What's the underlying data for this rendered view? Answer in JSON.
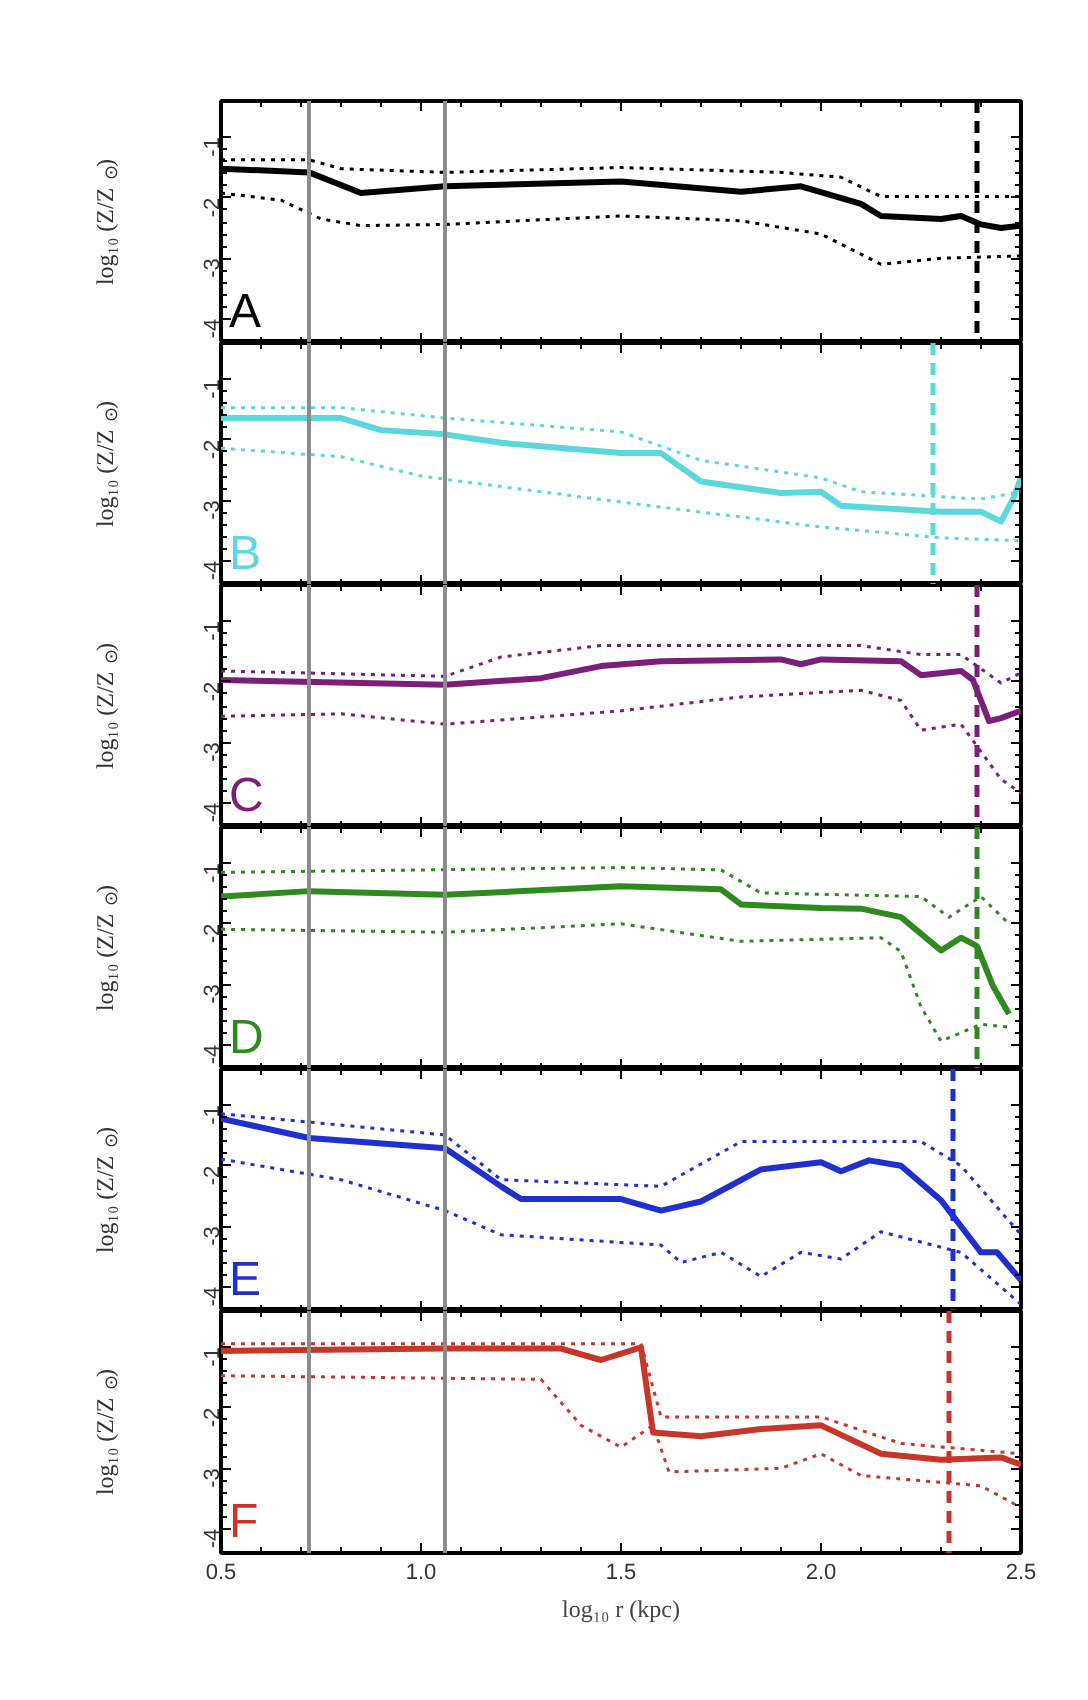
{
  "chart_data": [
    {
      "type": "line",
      "ylabel": "log₁₀ (Z/Z$_{⊙}$)",
      "annotations": [
        "A"
      ],
      "xlim": [
        0.5,
        2.5
      ],
      "ylim": [
        -4.4,
        -0.4
      ],
      "yticks": [
        -1,
        -2,
        -3,
        -4
      ],
      "xticks": [
        {
          "value": 0.5,
          "label": null
        },
        {
          "value": 1.0,
          "label": null
        },
        {
          "value": 1.5,
          "label": null
        },
        {
          "value": 2.0,
          "label": null
        },
        {
          "value": 2.5,
          "label": null
        }
      ],
      "tick_labels": "y",
      "ref_lines": [
        {
          "axis": "x",
          "value": 0.72,
          "color": "#8c8c8c",
          "line_style": "solid"
        },
        {
          "axis": "x",
          "value": 1.06,
          "color": "#8c8c8c",
          "line_style": "solid"
        },
        {
          "axis": "x",
          "value": 2.39,
          "color": "#000000",
          "line_style": "dashed"
        }
      ],
      "series": [
        {
          "color": "#000000",
          "line_style": "solid",
          "x": [
            0.5,
            0.72,
            0.85,
            1.06,
            1.5,
            1.8,
            1.95,
            2.1,
            2.15,
            2.3,
            2.35,
            2.4,
            2.45,
            2.5
          ],
          "values": [
            -1.52,
            -1.58,
            -1.92,
            -1.81,
            -1.73,
            -1.9,
            -1.81,
            -2.1,
            -2.3,
            -2.35,
            -2.3,
            -2.44,
            -2.5,
            -2.46
          ]
        },
        {
          "color": "#000000",
          "line_style": "dotted",
          "x": [
            0.5,
            0.72,
            0.8,
            1.06,
            1.5,
            1.9,
            2.05,
            2.15,
            2.4,
            2.5
          ],
          "values": [
            -1.37,
            -1.37,
            -1.52,
            -1.58,
            -1.5,
            -1.58,
            -1.66,
            -1.98,
            -1.98,
            -1.98
          ]
        },
        {
          "color": "#000000",
          "line_style": "dotted",
          "x": [
            0.5,
            0.65,
            0.75,
            0.85,
            1.06,
            1.5,
            1.8,
            2.0,
            2.15,
            2.3,
            2.5
          ],
          "values": [
            -1.92,
            -2.04,
            -2.35,
            -2.46,
            -2.44,
            -2.3,
            -2.38,
            -2.6,
            -3.1,
            -3.0,
            -2.96
          ]
        }
      ]
    },
    {
      "type": "line",
      "ylabel": "log₁₀ (Z/Z$_{⊙}$)",
      "annotations": [
        "B"
      ],
      "xlim": [
        0.5,
        2.5
      ],
      "ylim": [
        -4.4,
        -0.4
      ],
      "yticks": [
        -1,
        -2,
        -3,
        -4
      ],
      "xticks": [
        {
          "value": 0.5,
          "label": null
        },
        {
          "value": 1.0,
          "label": null
        },
        {
          "value": 1.5,
          "label": null
        },
        {
          "value": 2.0,
          "label": null
        },
        {
          "value": 2.5,
          "label": null
        }
      ],
      "tick_labels": "y",
      "ref_lines": [
        {
          "axis": "x",
          "value": 0.72,
          "color": "#8c8c8c",
          "line_style": "solid"
        },
        {
          "axis": "x",
          "value": 1.06,
          "color": "#8c8c8c",
          "line_style": "solid"
        },
        {
          "axis": "x",
          "value": 2.28,
          "color": "#5ad8dc",
          "line_style": "dashed"
        }
      ],
      "series": [
        {
          "color": "#5ad8dc",
          "line_style": "solid",
          "x": [
            0.5,
            0.8,
            0.9,
            1.06,
            1.2,
            1.5,
            1.6,
            1.7,
            1.9,
            2.0,
            2.05,
            2.3,
            2.4,
            2.45,
            2.48,
            2.5
          ],
          "values": [
            -1.64,
            -1.64,
            -1.84,
            -1.91,
            -2.05,
            -2.22,
            -2.22,
            -2.69,
            -2.88,
            -2.86,
            -3.09,
            -3.19,
            -3.19,
            -3.35,
            -2.98,
            -2.63
          ]
        },
        {
          "color": "#5ad8dc",
          "line_style": "dotted",
          "x": [
            0.5,
            0.8,
            1.06,
            1.5,
            1.7,
            2.0,
            2.1,
            2.4,
            2.5
          ],
          "values": [
            -1.47,
            -1.47,
            -1.64,
            -1.87,
            -2.34,
            -2.63,
            -2.86,
            -2.98,
            -2.86
          ]
        },
        {
          "color": "#5ad8dc",
          "line_style": "dotted",
          "x": [
            0.5,
            0.8,
            1.0,
            1.5,
            2.0,
            2.3,
            2.5
          ],
          "values": [
            -2.14,
            -2.28,
            -2.6,
            -3.03,
            -3.44,
            -3.62,
            -3.67
          ]
        }
      ]
    },
    {
      "type": "line",
      "ylabel": "log₁₀ (Z/Z$_{⊙}$)",
      "annotations": [
        "C"
      ],
      "xlim": [
        0.5,
        2.5
      ],
      "ylim": [
        -4.4,
        -0.4
      ],
      "yticks": [
        -1,
        -2,
        -3,
        -4
      ],
      "xticks": [
        {
          "value": 0.5,
          "label": null
        },
        {
          "value": 1.0,
          "label": null
        },
        {
          "value": 1.5,
          "label": null
        },
        {
          "value": 2.0,
          "label": null
        },
        {
          "value": 2.5,
          "label": null
        }
      ],
      "tick_labels": "y",
      "ref_lines": [
        {
          "axis": "x",
          "value": 0.72,
          "color": "#8c8c8c",
          "line_style": "solid"
        },
        {
          "axis": "x",
          "value": 1.06,
          "color": "#8c8c8c",
          "line_style": "solid"
        },
        {
          "axis": "x",
          "value": 2.39,
          "color": "#7b1f7a",
          "line_style": "dashed"
        }
      ],
      "series": [
        {
          "color": "#7b1f7a",
          "line_style": "solid",
          "x": [
            0.5,
            1.06,
            1.3,
            1.45,
            1.6,
            1.9,
            1.95,
            2.0,
            2.2,
            2.25,
            2.35,
            2.38,
            2.42,
            2.45,
            2.5
          ],
          "values": [
            -1.97,
            -2.05,
            -1.94,
            -1.74,
            -1.66,
            -1.63,
            -1.71,
            -1.63,
            -1.66,
            -1.89,
            -1.82,
            -1.97,
            -2.65,
            -2.6,
            -2.48
          ]
        },
        {
          "color": "#7b1f7a",
          "line_style": "dotted",
          "x": [
            0.5,
            1.06,
            1.2,
            1.45,
            2.1,
            2.25,
            2.35,
            2.45,
            2.5
          ],
          "values": [
            -1.82,
            -1.91,
            -1.59,
            -1.4,
            -1.4,
            -1.55,
            -1.55,
            -2.02,
            -1.85
          ]
        },
        {
          "color": "#7b1f7a",
          "line_style": "dotted",
          "x": [
            0.5,
            0.8,
            1.06,
            1.5,
            1.8,
            2.1,
            2.2,
            2.25,
            2.35,
            2.45,
            2.5
          ],
          "values": [
            -2.57,
            -2.53,
            -2.7,
            -2.48,
            -2.25,
            -2.14,
            -2.31,
            -2.8,
            -2.7,
            -3.61,
            -3.84
          ]
        }
      ]
    },
    {
      "type": "line",
      "ylabel": "log₁₀ (Z/Z$_{⊙}$)",
      "annotations": [
        "D"
      ],
      "xlim": [
        0.5,
        2.5
      ],
      "ylim": [
        -4.4,
        -0.4
      ],
      "yticks": [
        -1,
        -2,
        -3,
        -4
      ],
      "xticks": [
        {
          "value": 0.5,
          "label": null
        },
        {
          "value": 1.0,
          "label": null
        },
        {
          "value": 1.5,
          "label": null
        },
        {
          "value": 2.0,
          "label": null
        },
        {
          "value": 2.5,
          "label": null
        }
      ],
      "tick_labels": "y",
      "ref_lines": [
        {
          "axis": "x",
          "value": 0.72,
          "color": "#8c8c8c",
          "line_style": "solid"
        },
        {
          "axis": "x",
          "value": 1.06,
          "color": "#8c8c8c",
          "line_style": "solid"
        },
        {
          "axis": "x",
          "value": 2.39,
          "color": "#2e8a1e",
          "line_style": "dashed"
        }
      ],
      "series": [
        {
          "color": "#2e8a1e",
          "line_style": "solid",
          "x": [
            0.5,
            0.72,
            1.06,
            1.5,
            1.75,
            1.8,
            2.0,
            2.1,
            2.2,
            2.3,
            2.35,
            2.39,
            2.43,
            2.47
          ],
          "values": [
            -1.55,
            -1.46,
            -1.52,
            -1.38,
            -1.43,
            -1.68,
            -1.74,
            -1.75,
            -1.89,
            -2.44,
            -2.23,
            -2.37,
            -3.03,
            -3.49
          ]
        },
        {
          "color": "#2e8a1e",
          "line_style": "dotted",
          "x": [
            0.5,
            1.5,
            1.75,
            1.85,
            2.25,
            2.32,
            2.4,
            2.47
          ],
          "values": [
            -1.15,
            -1.07,
            -1.11,
            -1.49,
            -1.55,
            -1.89,
            -1.55,
            -2.0
          ]
        },
        {
          "color": "#2e8a1e",
          "line_style": "dotted",
          "x": [
            0.5,
            1.06,
            1.5,
            1.8,
            2.15,
            2.2,
            2.25,
            2.3,
            2.4,
            2.47
          ],
          "values": [
            -2.09,
            -2.14,
            -2.0,
            -2.29,
            -2.23,
            -2.46,
            -3.37,
            -3.94,
            -3.66,
            -3.71
          ]
        }
      ]
    },
    {
      "type": "line",
      "ylabel": "log₁₀ (Z/Z$_{⊙}$)",
      "annotations": [
        "E"
      ],
      "xlim": [
        0.5,
        2.5
      ],
      "ylim": [
        -4.4,
        -0.4
      ],
      "yticks": [
        -1,
        -2,
        -3,
        -4
      ],
      "xticks": [
        {
          "value": 0.5,
          "label": null
        },
        {
          "value": 1.0,
          "label": null
        },
        {
          "value": 1.5,
          "label": null
        },
        {
          "value": 2.0,
          "label": null
        },
        {
          "value": 2.5,
          "label": null
        }
      ],
      "tick_labels": "y",
      "ref_lines": [
        {
          "axis": "x",
          "value": 0.72,
          "color": "#8c8c8c",
          "line_style": "solid"
        },
        {
          "axis": "x",
          "value": 1.06,
          "color": "#8c8c8c",
          "line_style": "solid"
        },
        {
          "axis": "x",
          "value": 2.33,
          "color": "#1f2fd0",
          "line_style": "dashed"
        }
      ],
      "series": [
        {
          "color": "#1f2fd0",
          "line_style": "solid",
          "x": [
            0.5,
            0.72,
            1.06,
            1.2,
            1.25,
            1.5,
            1.6,
            1.7,
            1.85,
            2.0,
            2.05,
            2.12,
            2.2,
            2.3,
            2.4,
            2.44,
            2.5
          ],
          "values": [
            -1.22,
            -1.54,
            -1.71,
            -2.34,
            -2.55,
            -2.55,
            -2.74,
            -2.59,
            -2.06,
            -1.94,
            -2.09,
            -1.91,
            -2.0,
            -2.57,
            -3.43,
            -3.43,
            -3.89
          ]
        },
        {
          "color": "#1f2fd0",
          "line_style": "dotted",
          "x": [
            0.5,
            1.06,
            1.2,
            1.6,
            1.8,
            2.25,
            2.35,
            2.5
          ],
          "values": [
            -1.14,
            -1.49,
            -2.23,
            -2.34,
            -1.6,
            -1.6,
            -2.0,
            -3.14
          ]
        },
        {
          "color": "#1f2fd0",
          "line_style": "dotted",
          "x": [
            0.5,
            0.8,
            1.06,
            1.2,
            1.6,
            1.65,
            1.75,
            1.85,
            1.95,
            2.05,
            2.15,
            2.35,
            2.5
          ],
          "values": [
            -1.89,
            -2.23,
            -2.74,
            -3.14,
            -3.31,
            -3.6,
            -3.43,
            -3.83,
            -3.43,
            -3.54,
            -3.09,
            -3.43,
            -4.29
          ]
        }
      ]
    },
    {
      "type": "line",
      "ylabel": "log₁₀ (Z/Z$_{⊙}$)",
      "xlabel": "log₁₀ r (kpc)",
      "annotations": [
        "F"
      ],
      "xlim": [
        0.5,
        2.5
      ],
      "ylim": [
        -4.4,
        -0.4
      ],
      "yticks": [
        -1,
        -2,
        -3,
        -4
      ],
      "xticks": [
        {
          "value": 0.5,
          "label": "0.5"
        },
        {
          "value": 1.0,
          "label": "1.0"
        },
        {
          "value": 1.5,
          "label": "1.5"
        },
        {
          "value": 2.0,
          "label": "2.0"
        },
        {
          "value": 2.5,
          "label": "2.5"
        }
      ],
      "ref_lines": [
        {
          "axis": "x",
          "value": 0.72,
          "color": "#8c8c8c",
          "line_style": "solid"
        },
        {
          "axis": "x",
          "value": 1.06,
          "color": "#8c8c8c",
          "line_style": "solid"
        },
        {
          "axis": "x",
          "value": 2.32,
          "color": "#c8362a",
          "line_style": "dashed"
        }
      ],
      "series": [
        {
          "color": "#c8362a",
          "line_style": "solid",
          "x": [
            0.5,
            1.06,
            1.35,
            1.45,
            1.55,
            1.58,
            1.7,
            1.85,
            2.0,
            2.15,
            2.3,
            2.45,
            2.5
          ],
          "values": [
            -1.06,
            -1.02,
            -1.02,
            -1.21,
            -1.0,
            -2.41,
            -2.47,
            -2.35,
            -2.29,
            -2.76,
            -2.86,
            -2.82,
            -2.94
          ]
        },
        {
          "color": "#c8362a",
          "line_style": "dotted",
          "x": [
            0.5,
            1.55,
            1.6,
            2.0,
            2.2,
            2.5
          ],
          "values": [
            -0.94,
            -0.94,
            -2.15,
            -2.15,
            -2.59,
            -2.76
          ]
        },
        {
          "color": "#c8362a",
          "line_style": "dotted",
          "x": [
            0.5,
            1.3,
            1.4,
            1.5,
            1.58,
            1.62,
            1.9,
            2.0,
            2.1,
            2.4,
            2.5
          ],
          "values": [
            -1.47,
            -1.53,
            -2.29,
            -2.65,
            -2.29,
            -3.06,
            -3.0,
            -2.76,
            -3.12,
            -3.29,
            -3.65
          ]
        }
      ]
    }
  ]
}
